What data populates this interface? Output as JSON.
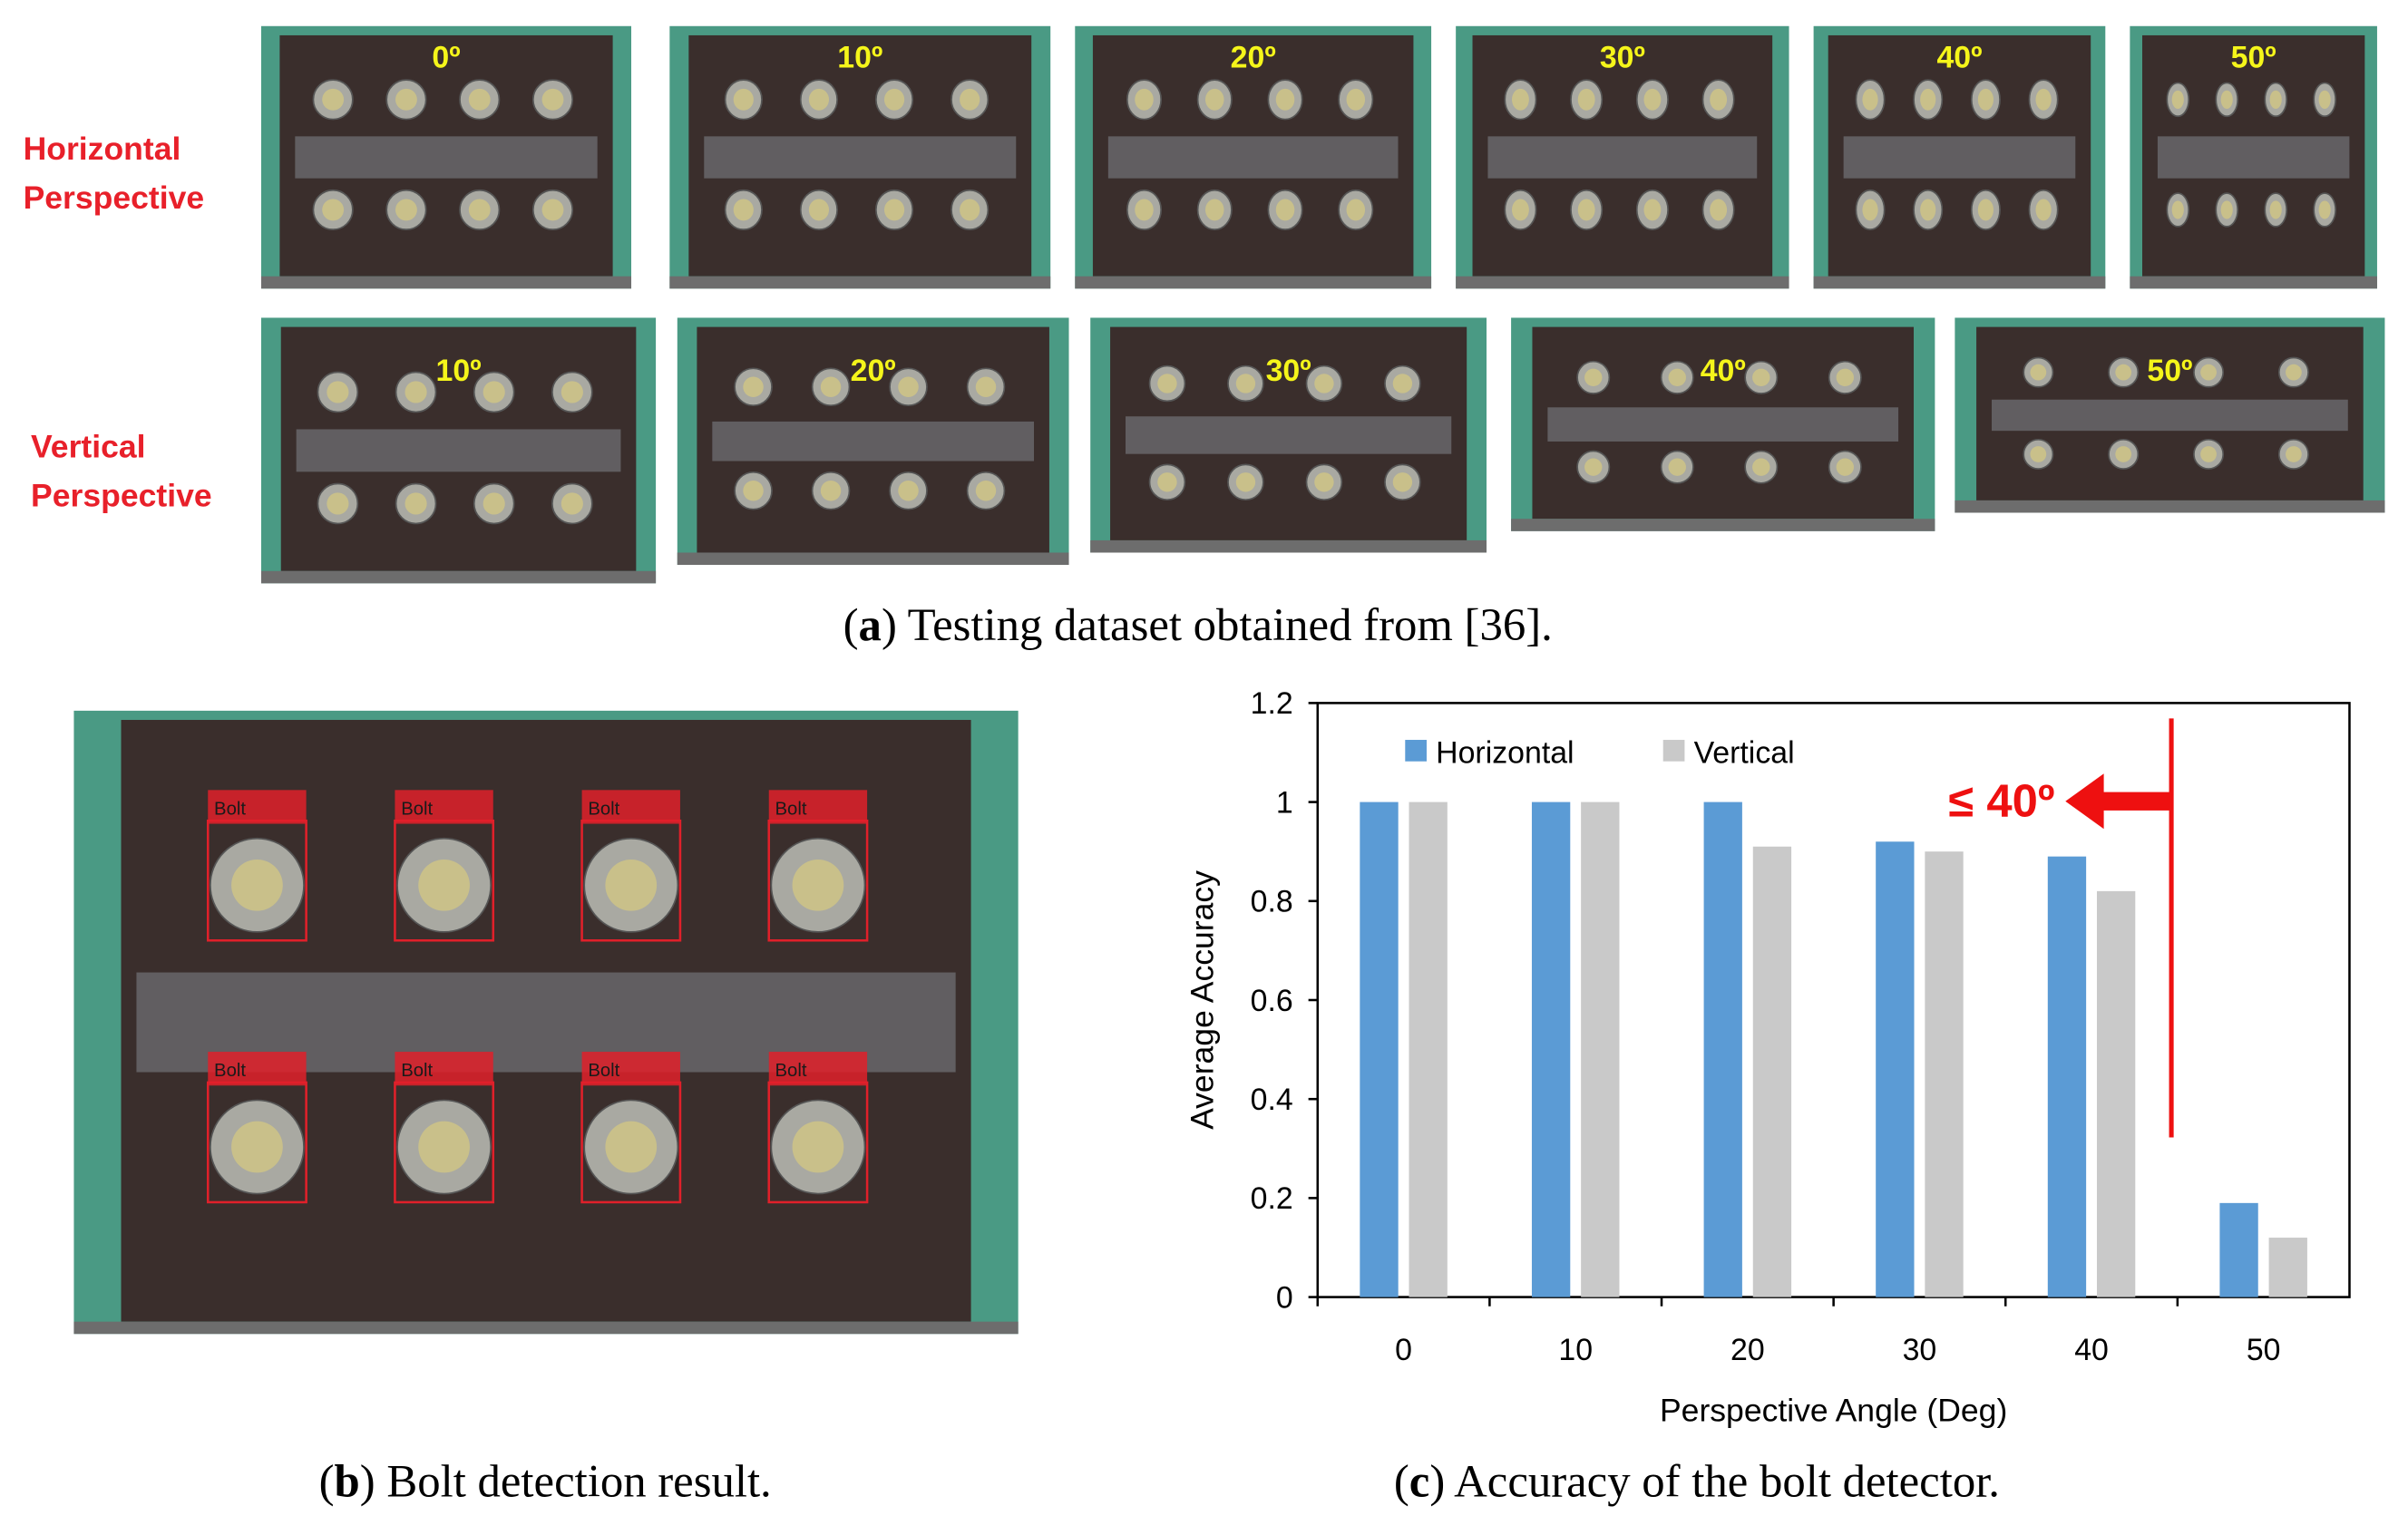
{
  "panel_a": {
    "row_labels": [
      [
        "Horizontal",
        "Perspective"
      ],
      [
        "Vertical",
        "Perspective"
      ]
    ],
    "horizontal_angles": [
      "0º",
      "10º",
      "20º",
      "30º",
      "40º",
      "50º"
    ],
    "vertical_angles": [
      "10º",
      "20º",
      "30º",
      "40º",
      "50º"
    ],
    "caption": [
      "(",
      "a",
      ") Testing dataset obtained from [36]."
    ]
  },
  "panel_b": {
    "detections": [
      "Bolt",
      "Bolt",
      "Bolt",
      "Bolt",
      "Bolt",
      "Bolt",
      "Bolt",
      "Bolt"
    ],
    "caption": [
      "(",
      "b",
      ") Bolt detection result."
    ]
  },
  "panel_c": {
    "caption": [
      "(",
      "c",
      ") Accuracy of the bolt detector."
    ]
  },
  "chart_data": {
    "type": "bar",
    "x_label": "Perspective Angle (Deg)",
    "y_label": "Average Accuracy",
    "categories": [
      "0",
      "10",
      "20",
      "30",
      "40",
      "50"
    ],
    "series": [
      {
        "name": "Horizontal",
        "color": "#5b9bd5",
        "values": [
          1,
          1,
          1,
          0.92,
          0.89,
          0.19
        ]
      },
      {
        "name": "Vertical",
        "color": "#c9c9c9",
        "values": [
          1,
          1,
          0.91,
          0.9,
          0.82,
          0.12
        ]
      }
    ],
    "ylim": [
      0,
      1.2
    ],
    "yticks": [
      0,
      0.2,
      0.4,
      0.6,
      0.8,
      1,
      1.2
    ],
    "legend": "top-left",
    "annotation": "≤ 40º"
  }
}
